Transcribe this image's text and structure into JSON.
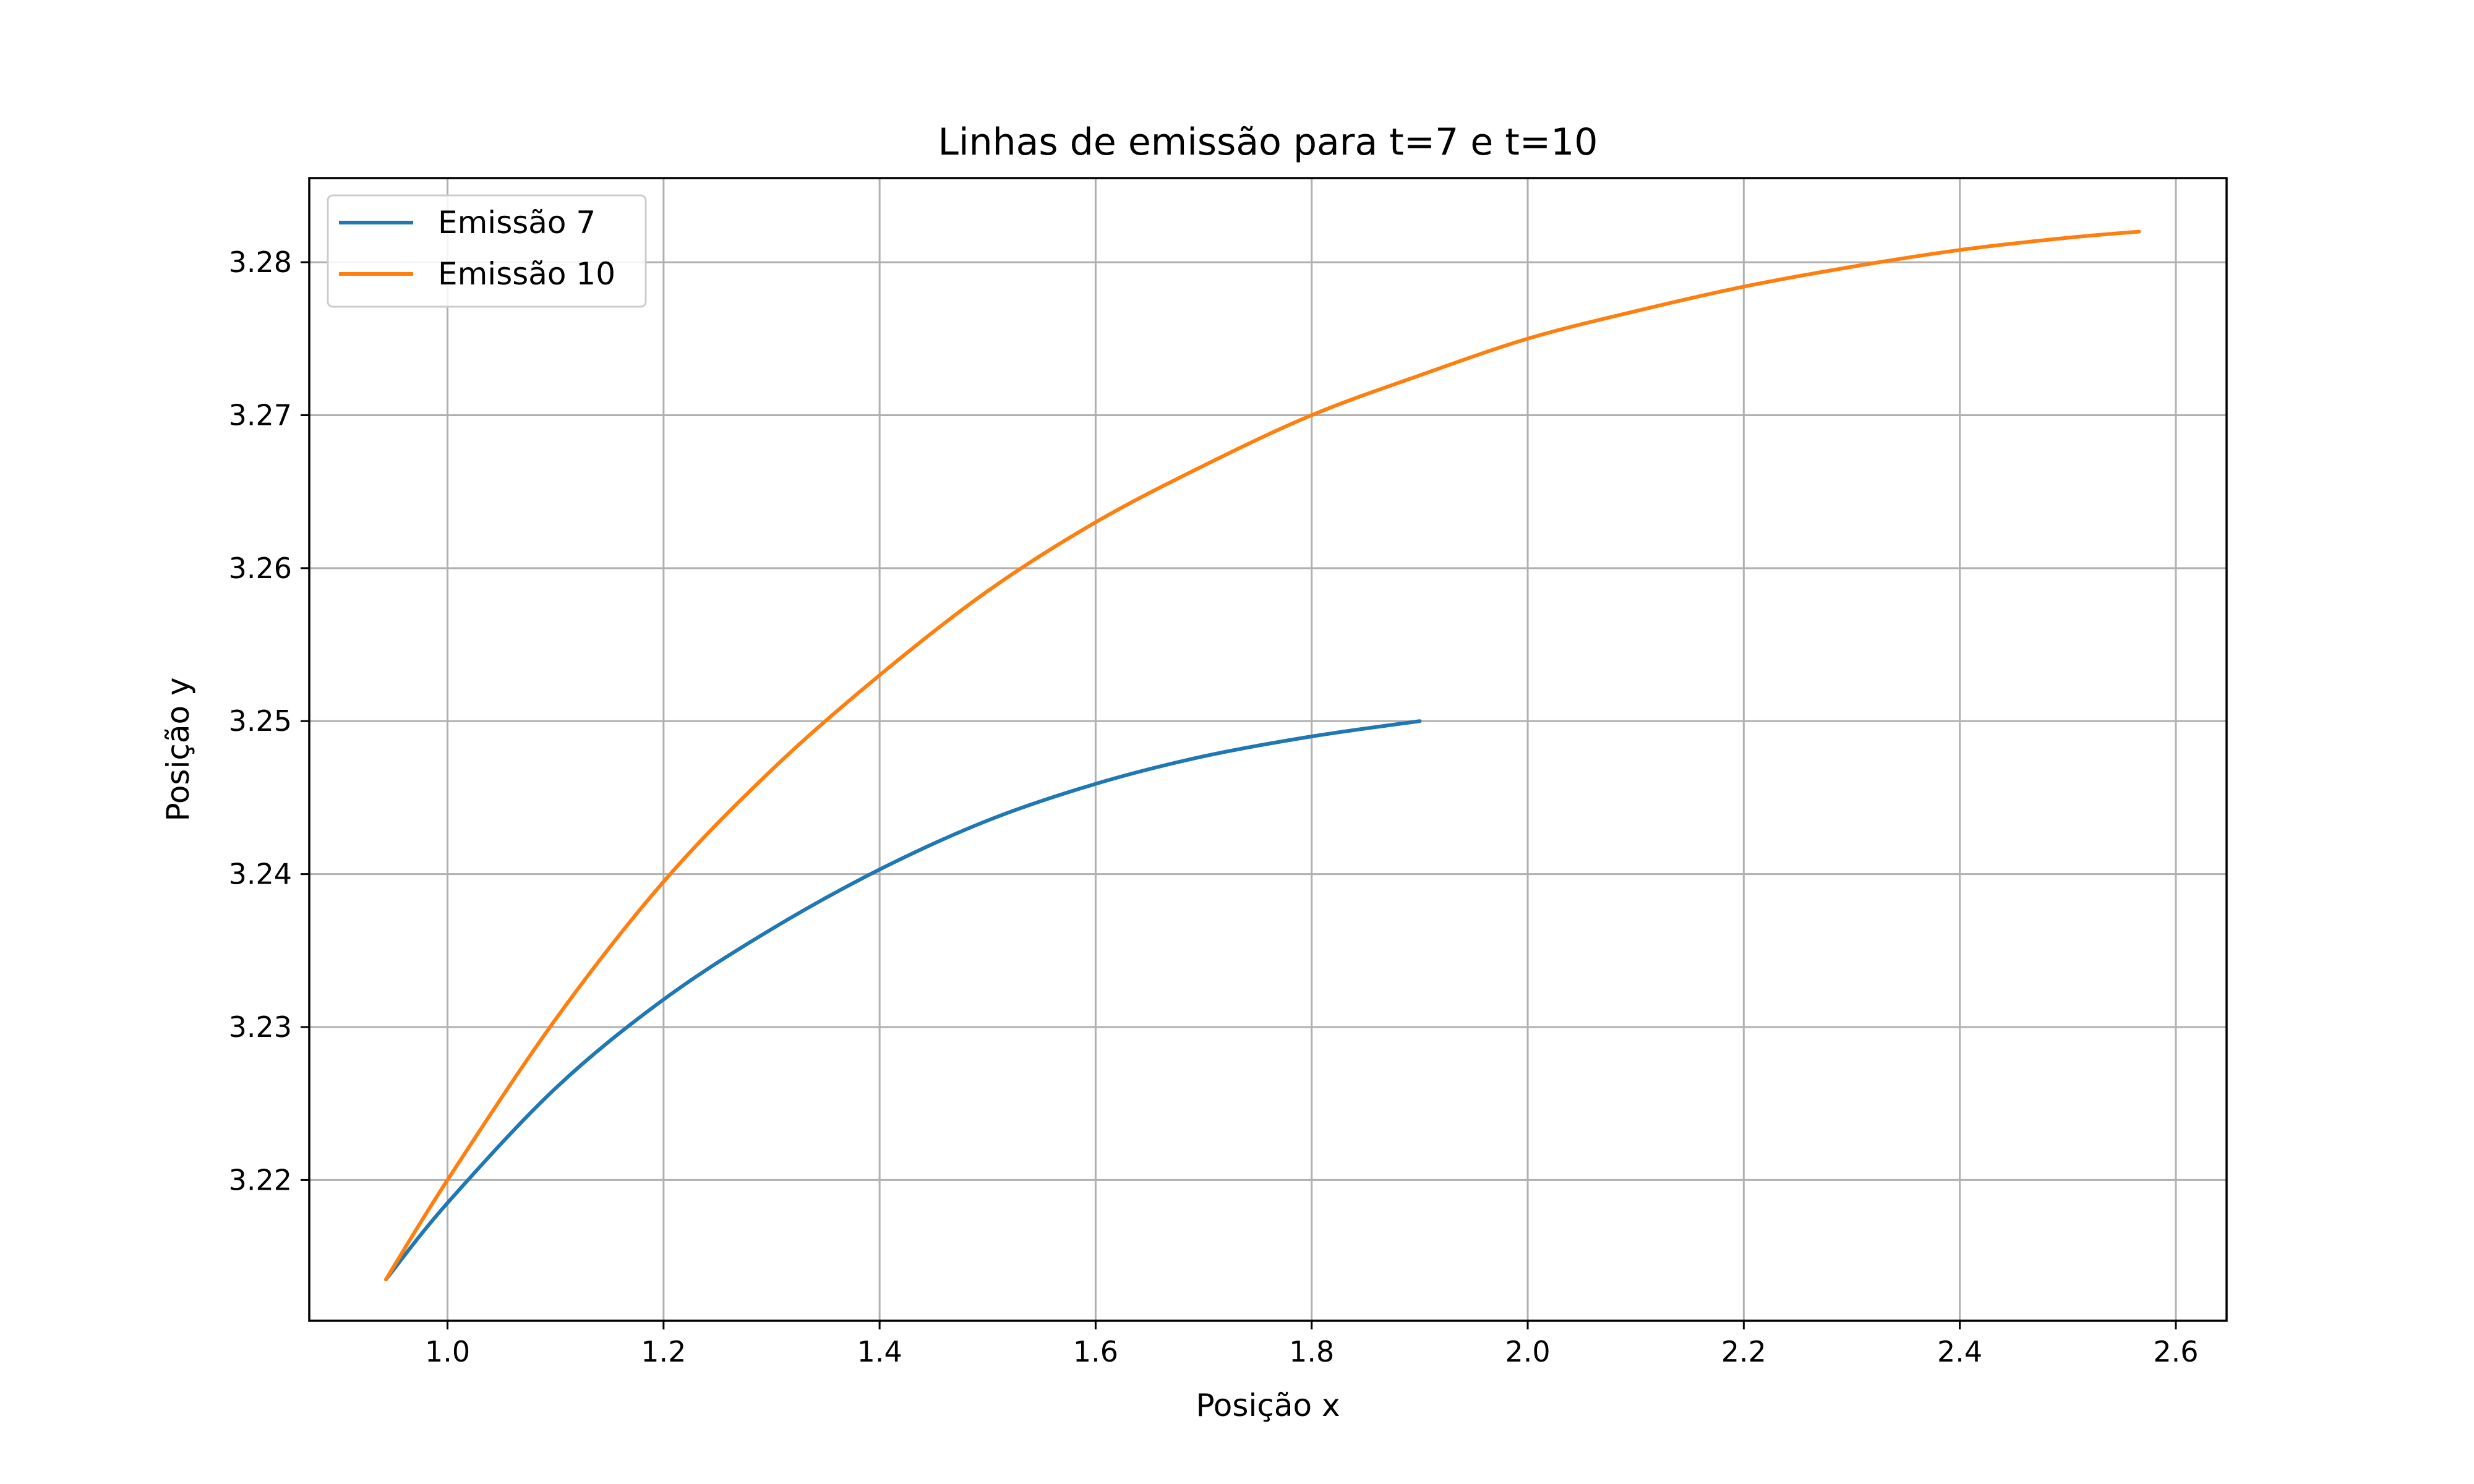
{
  "chart_data": {
    "type": "line",
    "title": "Linhas de emissão para t=7 e t=10",
    "xlabel": "Posição x",
    "ylabel": "Posição y",
    "xlim": [
      0.872,
      2.647
    ],
    "ylim": [
      3.2108,
      3.2855
    ],
    "xticks": [
      "1.0",
      "1.2",
      "1.4",
      "1.6",
      "1.8",
      "2.0",
      "2.2",
      "2.4",
      "2.6"
    ],
    "yticks": [
      "3.22",
      "3.23",
      "3.24",
      "3.25",
      "3.26",
      "3.27",
      "3.28"
    ],
    "grid": true,
    "legend_position": "upper-left",
    "series": [
      {
        "name": "Emissão 7",
        "color": "#1f77b4",
        "x": [
          0.943,
          1.0,
          1.1,
          1.2,
          1.3,
          1.4,
          1.5,
          1.6,
          1.7,
          1.8,
          1.9
        ],
        "y": [
          3.2135,
          3.2185,
          3.226,
          3.2318,
          3.2364,
          3.2403,
          3.2435,
          3.2459,
          3.2477,
          3.249,
          3.25
        ]
      },
      {
        "name": "Emissão 10",
        "color": "#ff7f0e",
        "x": [
          0.943,
          1.0,
          1.1,
          1.2,
          1.3,
          1.4,
          1.5,
          1.6,
          1.7,
          1.8,
          1.9,
          2.0,
          2.1,
          2.2,
          2.3,
          2.4,
          2.5,
          2.566
        ],
        "y": [
          3.2135,
          3.22,
          3.2305,
          3.2395,
          3.2468,
          3.253,
          3.2585,
          3.263,
          3.2667,
          3.27,
          3.2726,
          3.275,
          3.2768,
          3.2784,
          3.2797,
          3.2808,
          3.2816,
          3.282
        ]
      }
    ]
  }
}
